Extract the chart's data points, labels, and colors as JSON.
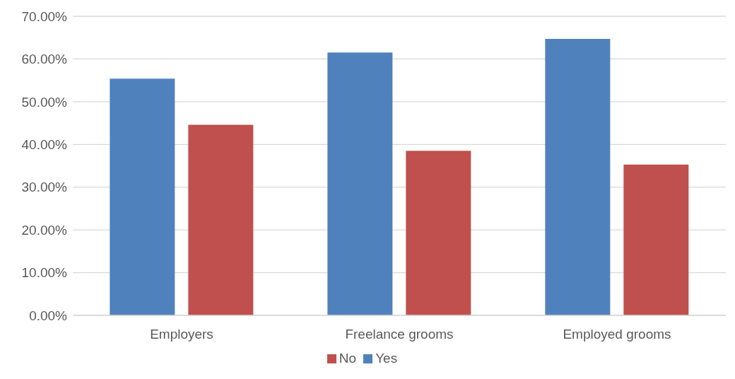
{
  "chart_data": {
    "type": "bar",
    "categories": [
      "Employers",
      "Freelance grooms",
      "Employed grooms"
    ],
    "series": [
      {
        "name": "Yes",
        "color": "#4f81bd",
        "values": [
          55.4,
          61.5,
          64.7
        ]
      },
      {
        "name": "No",
        "color": "#c0504d",
        "values": [
          44.6,
          38.5,
          35.3
        ]
      }
    ],
    "ylim": [
      0,
      70
    ],
    "yticks": [
      {
        "value": 0,
        "label": "0.00%"
      },
      {
        "value": 10,
        "label": "10.00%"
      },
      {
        "value": 20,
        "label": "20.00%"
      },
      {
        "value": 30,
        "label": "30.00%"
      },
      {
        "value": 40,
        "label": "40.00%"
      },
      {
        "value": 50,
        "label": "50.00%"
      },
      {
        "value": 60,
        "label": "60.00%"
      },
      {
        "value": 70,
        "label": "70.00%"
      }
    ],
    "grid": "y",
    "legend": "bottom"
  }
}
